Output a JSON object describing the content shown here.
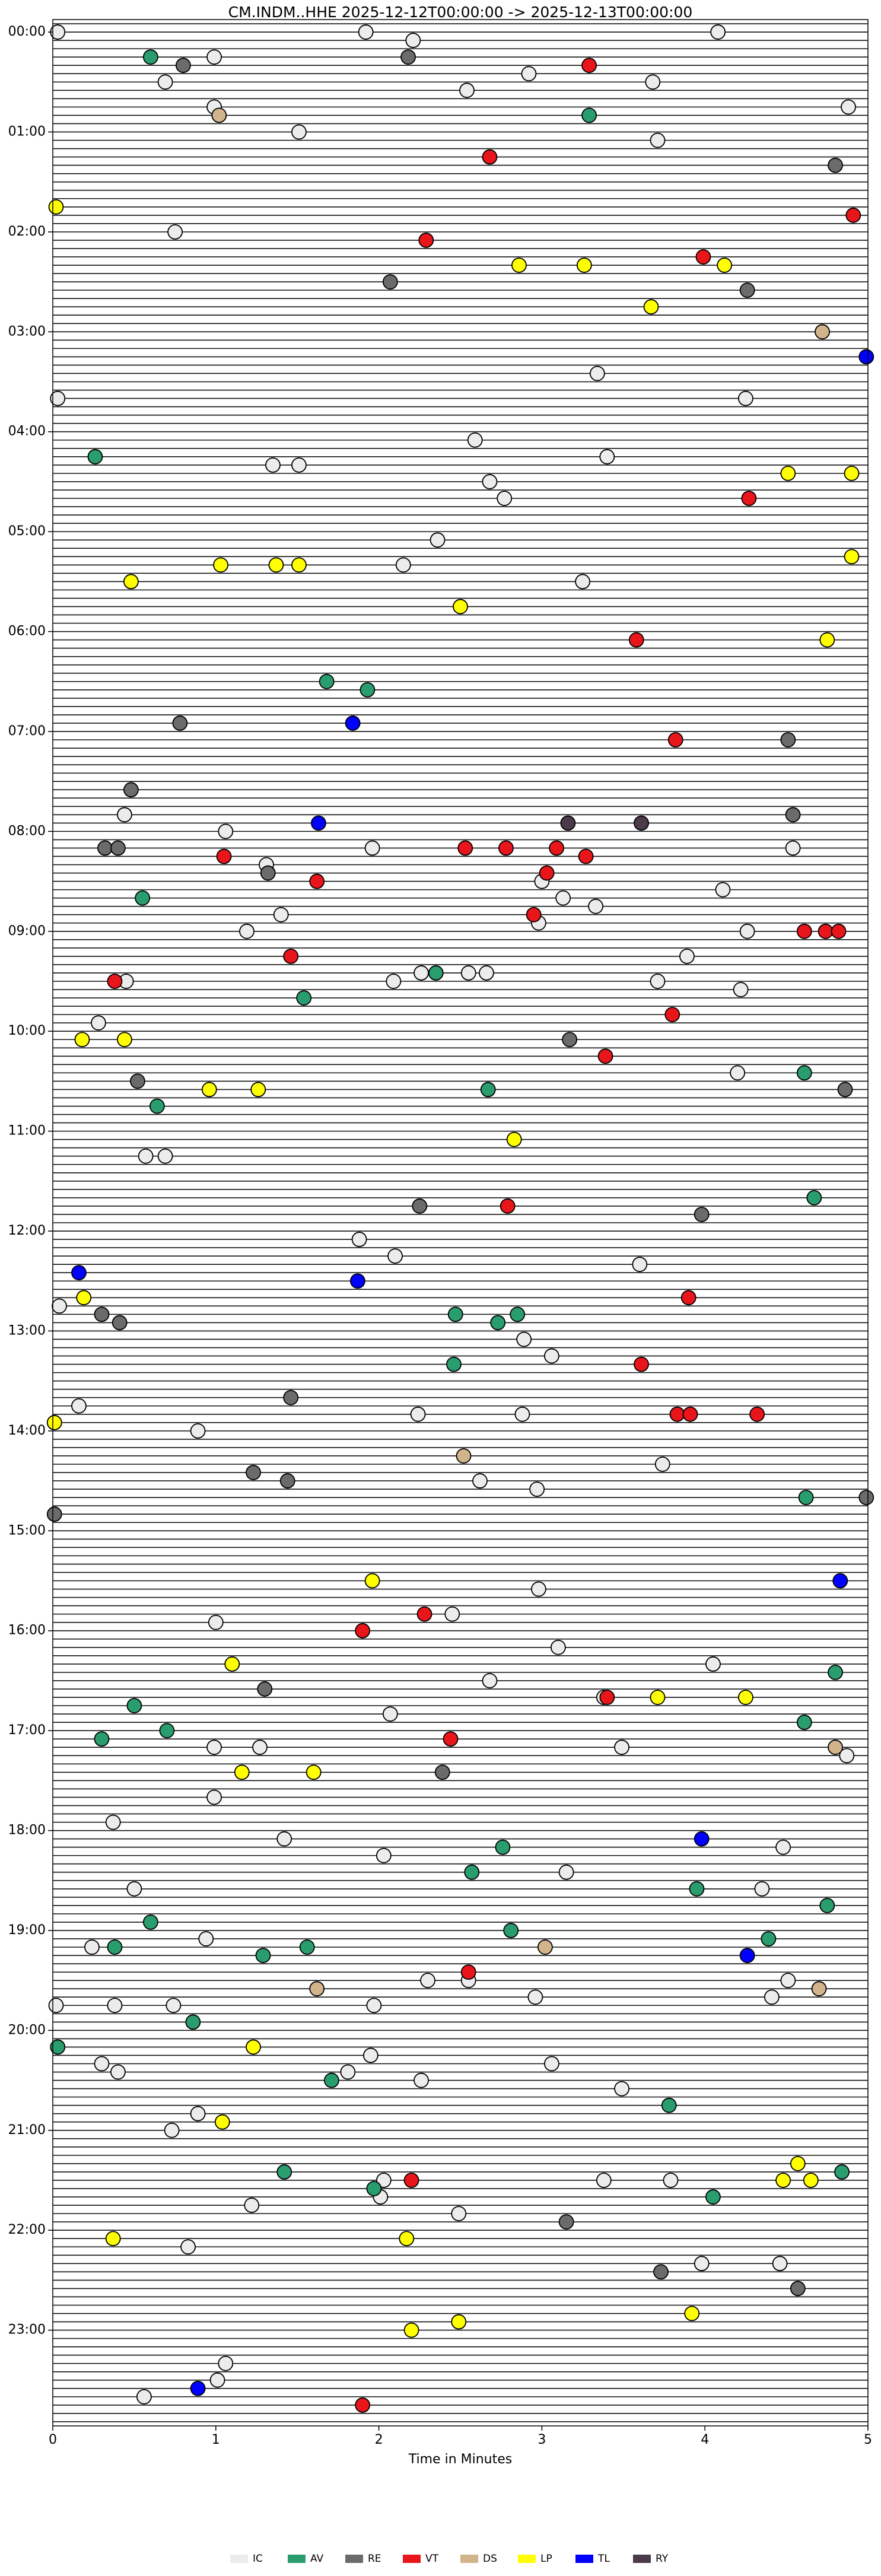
{
  "chart_data": {
    "type": "scatter",
    "title": "CM.INDM..HHE  2025-12-12T00:00:00 -> 2025-12-13T00:00:00",
    "xlabel": "Time in Minutes",
    "xlim": [
      0,
      5
    ],
    "xticks": [
      0,
      1,
      2,
      3,
      4,
      5
    ],
    "ylim": [
      287.5,
      -1.5
    ],
    "yticks": [
      {
        "value": 0,
        "label": "00:00"
      },
      {
        "value": 12,
        "label": "01:00"
      },
      {
        "value": 24,
        "label": "02:00"
      },
      {
        "value": 36,
        "label": "03:00"
      },
      {
        "value": 48,
        "label": "04:00"
      },
      {
        "value": 60,
        "label": "05:00"
      },
      {
        "value": 72,
        "label": "06:00"
      },
      {
        "value": 84,
        "label": "07:00"
      },
      {
        "value": 96,
        "label": "08:00"
      },
      {
        "value": 108,
        "label": "09:00"
      },
      {
        "value": 120,
        "label": "10:00"
      },
      {
        "value": 132,
        "label": "11:00"
      },
      {
        "value": 144,
        "label": "12:00"
      },
      {
        "value": 156,
        "label": "13:00"
      },
      {
        "value": 168,
        "label": "14:00"
      },
      {
        "value": 180,
        "label": "15:00"
      },
      {
        "value": 192,
        "label": "16:00"
      },
      {
        "value": 204,
        "label": "17:00"
      },
      {
        "value": 216,
        "label": "18:00"
      },
      {
        "value": 228,
        "label": "19:00"
      },
      {
        "value": 240,
        "label": "20:00"
      },
      {
        "value": 252,
        "label": "21:00"
      },
      {
        "value": 264,
        "label": "22:00"
      },
      {
        "value": 276,
        "label": "23:00"
      }
    ],
    "legend": "bottom",
    "series": [
      {
        "name": "IC",
        "color": "#ececec",
        "values": [
          0,
          0,
          0,
          1,
          3,
          5,
          6,
          6,
          7,
          9,
          9,
          12,
          13,
          24,
          41,
          44,
          44,
          49,
          51,
          52,
          52,
          54,
          56,
          61,
          64,
          66,
          94,
          96,
          98,
          98,
          100,
          102,
          103,
          104,
          105,
          106,
          107,
          108,
          108,
          111,
          113,
          113,
          113,
          114,
          114,
          114,
          115,
          119,
          125,
          135,
          135,
          145,
          147,
          148,
          153,
          157,
          159,
          165,
          166,
          166,
          168,
          172,
          174,
          175,
          187,
          190,
          191,
          194,
          196,
          198,
          200,
          202,
          206,
          206,
          206,
          207,
          212,
          215,
          217,
          218,
          219,
          221,
          223,
          223,
          229,
          230,
          234,
          234,
          234,
          236,
          236,
          237,
          237,
          237,
          237,
          243,
          244,
          244,
          245,
          245,
          246,
          247,
          252,
          250,
          258,
          258,
          258,
          260,
          261,
          262,
          266,
          268,
          268,
          280,
          282,
          284
        ],
        "x": [
          0.03,
          1.92,
          4.08,
          2.21,
          0.99,
          2.92,
          0.69,
          3.68,
          2.54,
          4.88,
          0.99,
          1.51,
          3.71,
          0.75,
          3.34,
          0.03,
          4.25,
          2.59,
          3.4,
          1.35,
          1.51,
          2.68,
          2.77,
          2.36,
          2.15,
          3.25,
          0.44,
          1.06,
          1.96,
          4.54,
          1.31,
          3.0,
          4.11,
          3.13,
          3.33,
          1.4,
          2.98,
          1.19,
          4.26,
          3.89,
          2.26,
          2.55,
          2.66,
          2.09,
          0.45,
          3.71,
          4.22,
          0.28,
          4.2,
          0.57,
          0.69,
          1.88,
          2.1,
          3.6,
          0.04,
          2.89,
          3.06,
          0.16,
          2.24,
          2.88,
          0.89,
          3.74,
          2.62,
          2.97,
          2.98,
          2.45,
          1.0,
          3.1,
          4.05,
          2.68,
          3.38,
          2.07,
          0.99,
          1.27,
          3.49,
          4.87,
          0.99,
          0.37,
          1.42,
          4.48,
          2.03,
          3.15,
          0.5,
          4.35,
          0.94,
          0.24,
          2.55,
          2.3,
          4.51,
          2.96,
          4.41,
          0.02,
          0.38,
          0.74,
          1.97,
          1.95,
          3.06,
          0.3,
          0.4,
          1.81,
          2.26,
          3.49,
          0.73,
          0.89,
          2.03,
          3.38,
          3.79,
          2.01,
          1.22,
          2.49,
          0.83,
          3.98,
          4.46,
          1.06,
          1.01,
          0.56
        ]
      },
      {
        "name": "AV",
        "color": "#2a9d6e",
        "values": [
          3,
          10,
          51,
          78,
          79,
          104,
          113,
          116,
          125,
          127,
          129,
          140,
          154,
          154,
          155,
          160,
          176,
          197,
          201,
          203,
          204,
          205,
          218,
          221,
          223,
          225,
          227,
          228,
          229,
          230,
          231,
          230,
          239,
          242,
          246,
          249,
          257,
          257,
          259,
          260
        ],
        "x": [
          0.6,
          3.29,
          0.26,
          1.68,
          1.93,
          0.55,
          2.35,
          1.54,
          4.61,
          2.67,
          0.64,
          4.67,
          2.47,
          2.85,
          2.73,
          2.46,
          4.62,
          4.8,
          0.5,
          4.61,
          0.7,
          0.3,
          2.76,
          2.57,
          3.95,
          4.75,
          0.6,
          2.81,
          4.39,
          0.38,
          1.29,
          1.56,
          0.86,
          0.03,
          1.71,
          3.78,
          4.84,
          1.42,
          1.97,
          4.05
        ]
      },
      {
        "name": "RE",
        "color": "#6b6b6b",
        "values": [
          3,
          4,
          16,
          30,
          31,
          83,
          85,
          91,
          94,
          98,
          98,
          101,
          121,
          126,
          127,
          141,
          142,
          154,
          155,
          164,
          173,
          174,
          176,
          178,
          199,
          209,
          263,
          269,
          271
        ],
        "x": [
          2.18,
          0.8,
          4.8,
          2.07,
          4.26,
          0.78,
          4.51,
          0.48,
          4.54,
          0.32,
          0.4,
          1.32,
          3.17,
          0.52,
          4.86,
          2.25,
          3.98,
          0.3,
          0.41,
          1.46,
          1.23,
          1.44,
          4.99,
          0.01,
          1.3,
          2.39,
          3.15,
          3.73,
          4.57
        ]
      },
      {
        "name": "VT",
        "color": "#e8161b",
        "values": [
          4,
          15,
          22,
          25,
          27,
          56,
          73,
          85,
          99,
          98,
          98,
          98,
          99,
          101,
          102,
          106,
          108,
          108,
          108,
          111,
          114,
          118,
          123,
          141,
          152,
          160,
          166,
          166,
          166,
          190,
          192,
          200,
          205,
          233,
          258,
          285
        ],
        "x": [
          3.29,
          2.68,
          4.91,
          2.29,
          3.99,
          4.27,
          3.58,
          3.82,
          1.05,
          2.53,
          2.78,
          3.09,
          3.27,
          3.03,
          1.62,
          2.95,
          4.61,
          4.74,
          4.82,
          1.46,
          0.38,
          3.8,
          3.39,
          2.79,
          3.9,
          3.61,
          3.83,
          3.91,
          4.32,
          2.28,
          1.9,
          3.4,
          2.44,
          2.55,
          2.2,
          1.9
        ]
      },
      {
        "name": "DS",
        "color": "#d2b48c",
        "values": [
          10,
          36,
          171,
          206,
          230,
          235,
          235
        ],
        "x": [
          1.02,
          4.72,
          2.52,
          4.8,
          3.02,
          4.7,
          1.62
        ]
      },
      {
        "name": "LP",
        "color": "#ffff00",
        "values": [
          21,
          28,
          28,
          28,
          33,
          53,
          53,
          63,
          64,
          64,
          64,
          66,
          69,
          73,
          121,
          121,
          127,
          127,
          133,
          152,
          167,
          186,
          196,
          200,
          200,
          209,
          209,
          242,
          251,
          256,
          258,
          258,
          265,
          265,
          274,
          275,
          276
        ],
        "x": [
          0.02,
          2.86,
          3.26,
          4.12,
          3.67,
          4.51,
          4.9,
          4.9,
          1.03,
          1.37,
          1.51,
          0.48,
          2.5,
          4.75,
          0.18,
          0.44,
          0.96,
          1.26,
          2.83,
          0.19,
          0.01,
          1.96,
          1.1,
          3.71,
          4.25,
          1.16,
          1.6,
          1.23,
          1.04,
          4.57,
          4.48,
          4.65,
          0.37,
          2.17,
          3.92,
          2.49,
          2.2
        ]
      },
      {
        "name": "TL",
        "color": "#0000ff",
        "values": [
          39,
          83,
          95,
          149,
          150,
          186,
          217,
          231,
          283
        ],
        "x": [
          4.99,
          1.84,
          1.63,
          0.16,
          1.87,
          4.83,
          3.98,
          4.26,
          0.89
        ]
      },
      {
        "name": "RY",
        "color": "#4b3a4a",
        "values": [
          95,
          95
        ],
        "x": [
          3.16,
          3.61
        ]
      }
    ]
  }
}
